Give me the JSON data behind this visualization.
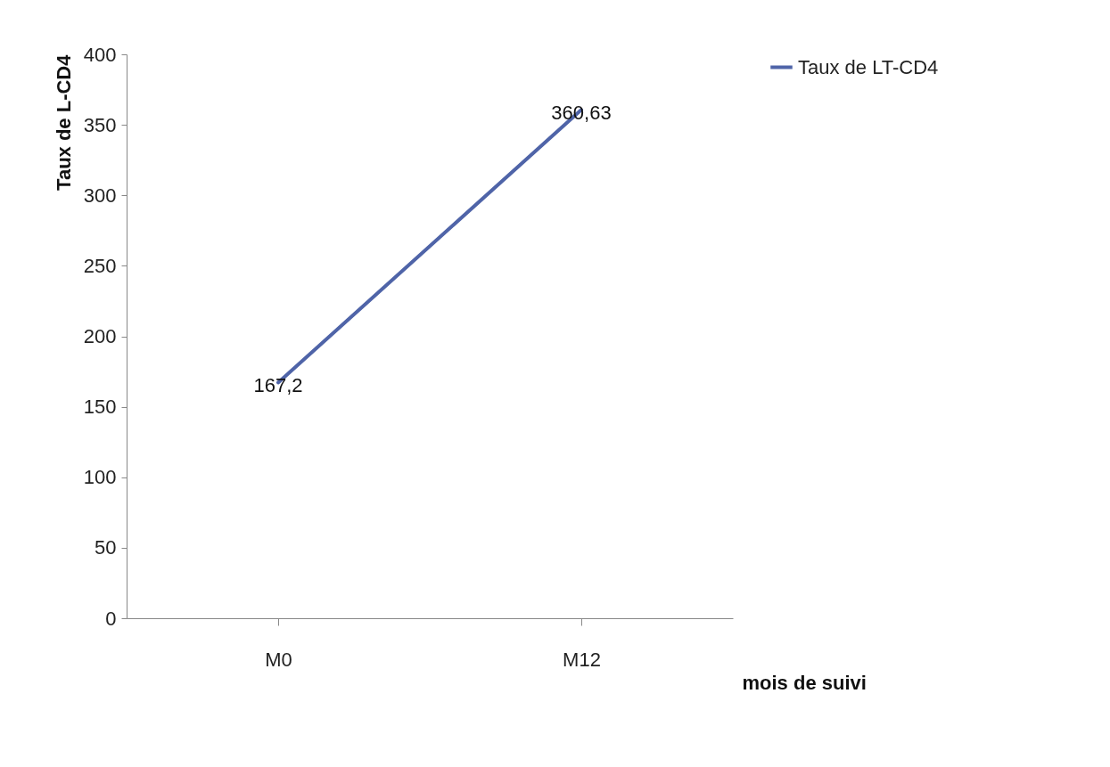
{
  "chart_data": {
    "type": "line",
    "xlabel": "mois de suivi",
    "ylabel": "Taux de L-CD4",
    "categories": [
      "M0",
      "M12"
    ],
    "series": [
      {
        "name": "Taux de LT-CD4",
        "color": "#4f64a8",
        "values": [
          167.2,
          360.63
        ],
        "value_labels": [
          "167,2",
          "360,63"
        ]
      }
    ],
    "ylim": [
      0,
      400
    ],
    "yticks": [
      0,
      50,
      100,
      150,
      200,
      250,
      300,
      350,
      400
    ],
    "grid": false,
    "legend": "right",
    "marker": "none"
  }
}
